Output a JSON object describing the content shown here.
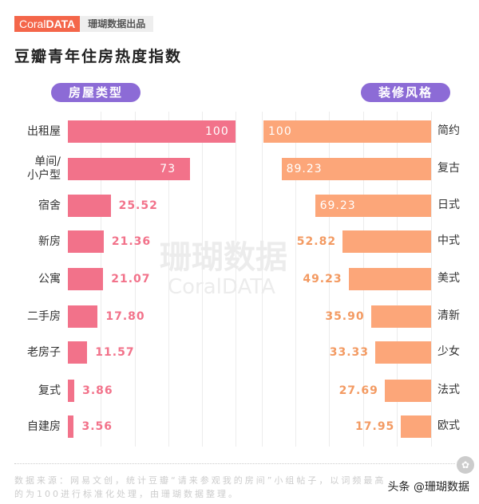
{
  "header": {
    "logo_light": "Coral",
    "logo_bold": "DATA",
    "tag": "珊瑚数据出品",
    "title": "豆瓣青年住房热度指数"
  },
  "watermark": {
    "cn": "珊瑚数据",
    "en": "CoralDATA"
  },
  "colors": {
    "left_bar": "#f2728a",
    "right_bar": "#fca679",
    "pill": "#8c6bd6",
    "logo": "#f4664a"
  },
  "chart_data": [
    {
      "type": "bar",
      "orientation": "horizontal",
      "title": "房屋类型",
      "categories": [
        "出租屋",
        "单间/\n小户型",
        "宿舍",
        "新房",
        "公寓",
        "二手房",
        "老房子",
        "复式",
        "自建房"
      ],
      "values": [
        100,
        73,
        25.52,
        21.36,
        21.07,
        17.8,
        11.57,
        3.86,
        3.56
      ],
      "labels": [
        "100",
        "73",
        "25.52",
        "21.36",
        "21.07",
        "17.80",
        "11.57",
        "3.86",
        "3.56"
      ],
      "xlim": [
        0,
        100
      ],
      "color": "#f2728a"
    },
    {
      "type": "bar",
      "orientation": "horizontal",
      "title": "装修风格",
      "categories": [
        "简约",
        "复古",
        "日式",
        "中式",
        "美式",
        "清新",
        "少女",
        "法式",
        "欧式"
      ],
      "values": [
        100,
        89.23,
        69.23,
        52.82,
        49.23,
        35.9,
        33.33,
        27.69,
        17.95
      ],
      "labels": [
        "100",
        "89.23",
        "69.23",
        "52.82",
        "49.23",
        "35.90",
        "33.33",
        "27.69",
        "17.95"
      ],
      "xlim": [
        0,
        100
      ],
      "color": "#fca679"
    }
  ],
  "footer": {
    "note": "数据来源：网易文创，统计豆瓣“请来参观我的房间”小组帖子，以词频最高的为100进行标准化处理，由珊瑚数据整理。",
    "source": "头条 @珊瑚数据"
  }
}
